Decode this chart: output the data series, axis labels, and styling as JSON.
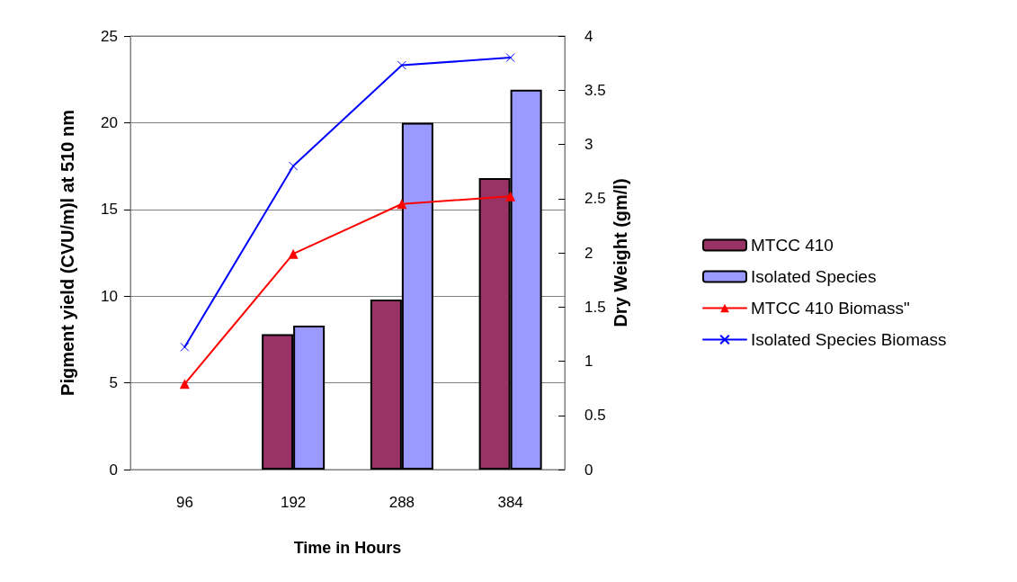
{
  "chart_data": {
    "type": "bar",
    "xlabel": "Time in Hours",
    "ylabel": "Pigment yield (CVU/m)l at 510 nm",
    "y2label": "Dry Weight (gm/l)",
    "categories": [
      "96",
      "192",
      "288",
      "384"
    ],
    "series": [
      {
        "name": "MTCC 410",
        "color": "#993366",
        "values": [
          null,
          7.8,
          9.8,
          16.8
        ]
      },
      {
        "name": "Isolated Species",
        "color": "#9999ff",
        "values": [
          null,
          8.3,
          20.0,
          21.9
        ]
      },
      {
        "name": "MTCC 410 Biomass\"",
        "type": "line",
        "axis": "y2",
        "color": "#ff0000",
        "marker": "triangle",
        "values": [
          0.79,
          1.99,
          2.45,
          2.52
        ]
      },
      {
        "name": "Isolated Species Biomass",
        "type": "line",
        "axis": "y2",
        "color": "#0000ff",
        "marker": "cross",
        "values": [
          1.13,
          2.8,
          3.73,
          3.8
        ]
      }
    ],
    "ylim": [
      0,
      25
    ],
    "yticks": [
      0,
      5,
      10,
      15,
      20,
      25
    ],
    "y2lim": [
      0,
      4
    ],
    "y2ticks": [
      0,
      0.5,
      1,
      1.5,
      2,
      2.5,
      3,
      3.5,
      4
    ],
    "grid": "y",
    "legend": "right"
  }
}
